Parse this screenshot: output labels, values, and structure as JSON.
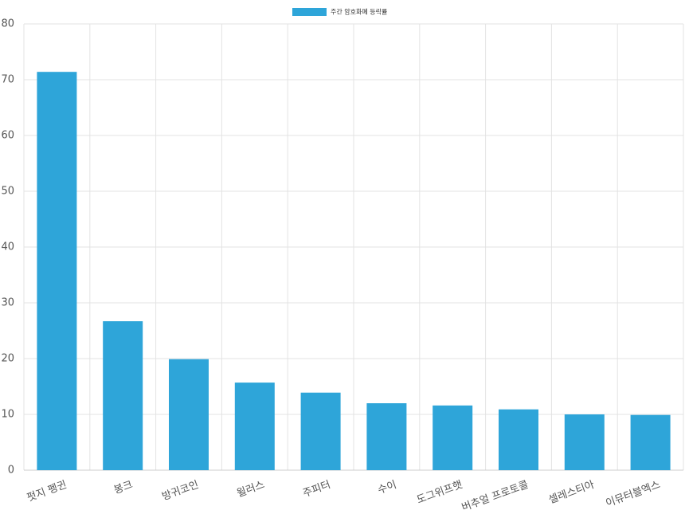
{
  "chart_data": {
    "type": "bar",
    "series": [
      {
        "name": "주간 암호화폐 등락률",
        "color": "#2ea5d9",
        "values": [
          71.4,
          26.7,
          19.9,
          15.7,
          13.9,
          12.0,
          11.6,
          10.9,
          10.0,
          9.9
        ]
      }
    ],
    "categories": [
      "펏지 펭귄",
      "봉크",
      "방귀코인",
      "윌러스",
      "주피터",
      "수이",
      "도그위프햇",
      "버추얼 프로토콜",
      "셀레스티아",
      "이뮤터블엑스"
    ],
    "ylim": [
      0,
      80
    ],
    "yticks": [
      0,
      10,
      20,
      30,
      40,
      50,
      60,
      70,
      80
    ],
    "grid": true
  }
}
